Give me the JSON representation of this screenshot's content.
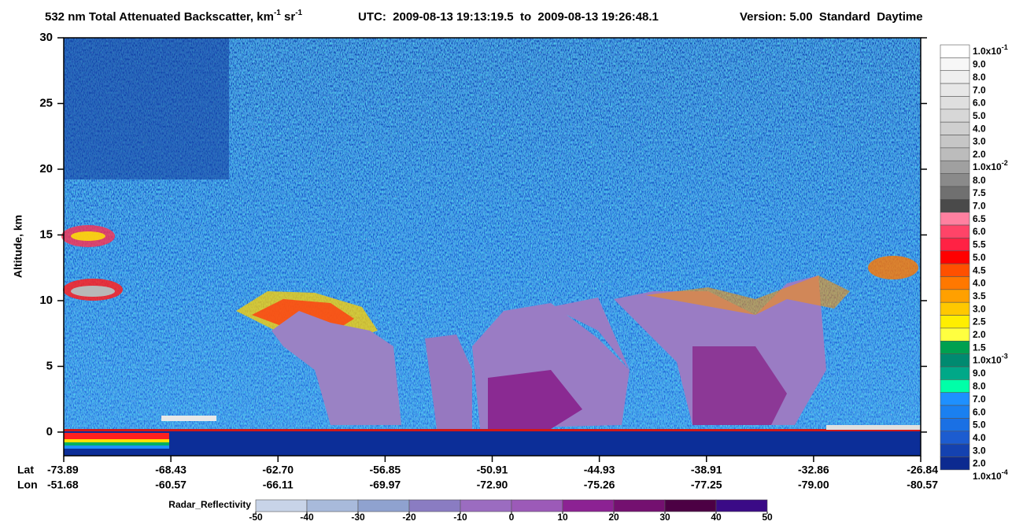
{
  "chart_data": {
    "type": "curtain",
    "title_parts": [
      "532 nm Total Attenuated Backscatter, km",
      "-1",
      " sr",
      "-1"
    ],
    "time_range": "UTC:  2009-08-13 19:13:19.5  to  2009-08-13 19:26:48.1",
    "version": "Version: 5.00  Standard  Daytime",
    "ylabel": "Altitude, km",
    "ylim": [
      -1.8,
      30
    ],
    "yticks": [
      0,
      5,
      10,
      15,
      20,
      25,
      30
    ],
    "lat_header": "Lat",
    "lon_header": "Lon",
    "lat_labels": [
      "-73.89",
      "-68.43",
      "-62.70",
      "-56.85",
      "-50.91",
      "-44.93",
      "-38.91",
      "-32.86",
      "-26.84"
    ],
    "lon_labels": [
      "-51.68",
      "-60.57",
      "-66.11",
      "-69.97",
      "-72.90",
      "-75.26",
      "-77.25",
      "-79.00",
      "-80.57"
    ],
    "colorbar": {
      "labels": [
        [
          "1.0x10",
          "-1"
        ],
        "9.0",
        "8.0",
        "7.0",
        "6.0",
        "5.0",
        "4.0",
        "3.0",
        "2.0",
        [
          "1.0x10",
          "-2"
        ],
        "8.0",
        "7.5",
        "7.0",
        "6.5",
        "6.0",
        "5.5",
        "5.0",
        "4.5",
        "4.0",
        "3.5",
        "3.0",
        "2.5",
        "2.0",
        "1.5",
        [
          "1.0x10",
          "-3"
        ],
        "9.0",
        "8.0",
        "7.0",
        "6.0",
        "5.0",
        "4.0",
        "3.0",
        "2.0",
        [
          "1.0x10",
          "-4"
        ]
      ],
      "colors": [
        "#ffffff",
        "#f7f7f7",
        "#efefef",
        "#e7e7e7",
        "#dfdfdf",
        "#d7d7d7",
        "#cfcfcf",
        "#c6c6c6",
        "#bcbcbc",
        "#a0a0a0",
        "#8a8a8a",
        "#707070",
        "#4a4a4a",
        "#ff80a0",
        "#ff4468",
        "#ff2244",
        "#ff0000",
        "#ff5000",
        "#ff7800",
        "#ffa000",
        "#ffc800",
        "#ffee00",
        "#ffff40",
        "#00a050",
        "#008a70",
        "#00a888",
        "#00ffa8",
        "#1e90ff",
        "#1a80f0",
        "#1a70e4",
        "#1c5cd0",
        "#1442b0",
        "#0c2a90"
      ]
    },
    "radar": {
      "label": "Radar_Reflectivity",
      "lim": [
        -50,
        50
      ],
      "ticks": [
        -50,
        -40,
        -30,
        -20,
        -10,
        0,
        10,
        20,
        30,
        40,
        50
      ],
      "colors": [
        "#c8d4e8",
        "#a8badb",
        "#8fa2cf",
        "#8a7cc2",
        "#9b6cc0",
        "#9c5ab8",
        "#8c2293",
        "#741070",
        "#4c0044",
        "#3a0a86"
      ]
    }
  }
}
